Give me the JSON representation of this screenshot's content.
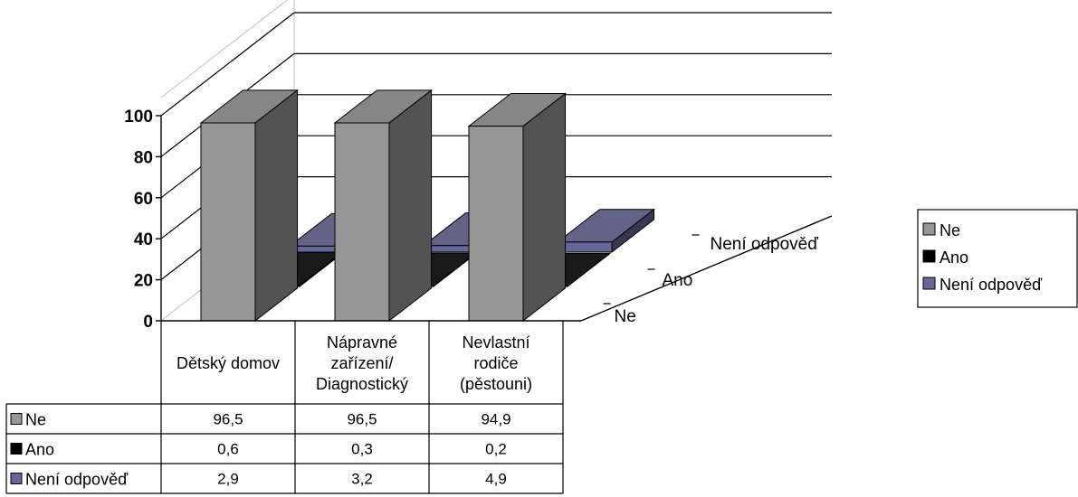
{
  "chart_data": {
    "type": "bar",
    "subtype": "3d-column-with-data-table",
    "categories": [
      [
        "Dětský domov"
      ],
      [
        "Nápravné",
        "zařízení/",
        "Diagnostický"
      ],
      [
        "Nevlastní",
        "rodiče",
        "(pěstouni)"
      ]
    ],
    "series": [
      {
        "name": "Ne",
        "values": [
          96.5,
          96.5,
          94.9
        ],
        "color": "#969696",
        "legend_label": "Ne"
      },
      {
        "name": "Ano",
        "values": [
          0.6,
          0.3,
          0.2
        ],
        "color": "#000000",
        "legend_label": "Ano"
      },
      {
        "name": "Není odpověď",
        "values": [
          2.9,
          3.2,
          4.9
        ],
        "color": "#666699",
        "legend_label": "Není odpověď"
      }
    ],
    "table_values": [
      [
        "96,5",
        "96,5",
        "94,9"
      ],
      [
        "0,6",
        "0,3",
        "0,2"
      ],
      [
        "2,9",
        "3,2",
        "4,9"
      ]
    ],
    "y_ticks": [
      "0",
      "20",
      "40",
      "60",
      "80",
      "100"
    ],
    "y_tick_values": [
      0,
      20,
      40,
      60,
      80,
      100
    ],
    "depth_labels": [
      "Ne",
      "Ano",
      "Není odpověď"
    ],
    "ylim": [
      0,
      100
    ],
    "grid": true,
    "legend_position": "right",
    "data_table": true
  }
}
